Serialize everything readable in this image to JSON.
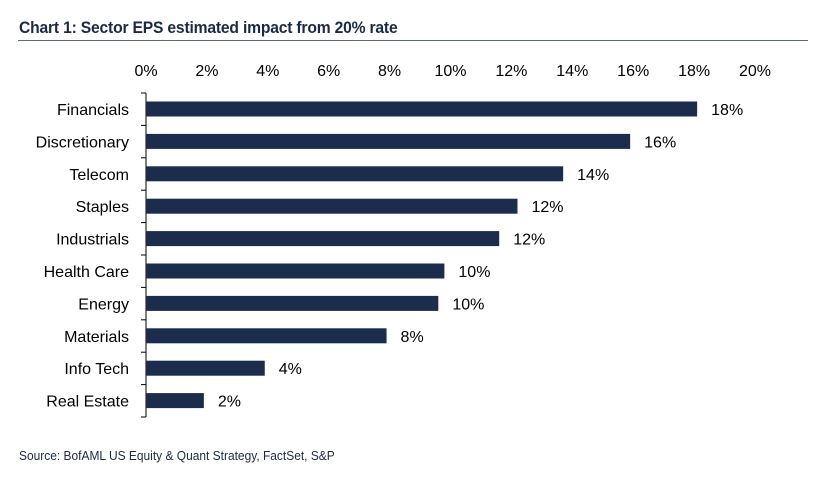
{
  "title": "Chart 1: Sector EPS estimated impact from 20% rate",
  "source": "Source: BofAML US Equity & Quant Strategy, FactSet, S&P",
  "colors": {
    "bar": "#1c2c4c",
    "title": "#1b2a44",
    "rule": "#5a6a85"
  },
  "chart_data": {
    "type": "bar",
    "orientation": "horizontal",
    "title": "Chart 1: Sector EPS estimated impact from 20% rate",
    "xlabel": "",
    "ylabel": "",
    "xlim": [
      0,
      20
    ],
    "x_ticks": [
      "0%",
      "2%",
      "4%",
      "6%",
      "8%",
      "10%",
      "12%",
      "14%",
      "16%",
      "18%",
      "20%"
    ],
    "x_tick_values": [
      0,
      2,
      4,
      6,
      8,
      10,
      12,
      14,
      16,
      18,
      20
    ],
    "axis_position": "top",
    "grid": false,
    "categories": [
      "Financials",
      "Discretionary",
      "Telecom",
      "Staples",
      "Industrials",
      "Health Care",
      "Energy",
      "Materials",
      "Info Tech",
      "Real Estate"
    ],
    "values": [
      18.1,
      15.9,
      13.7,
      12.2,
      11.6,
      9.8,
      9.6,
      7.9,
      3.9,
      1.9
    ],
    "data_labels": [
      "18%",
      "16%",
      "14%",
      "12%",
      "12%",
      "10%",
      "10%",
      "8%",
      "4%",
      "2%"
    ]
  }
}
